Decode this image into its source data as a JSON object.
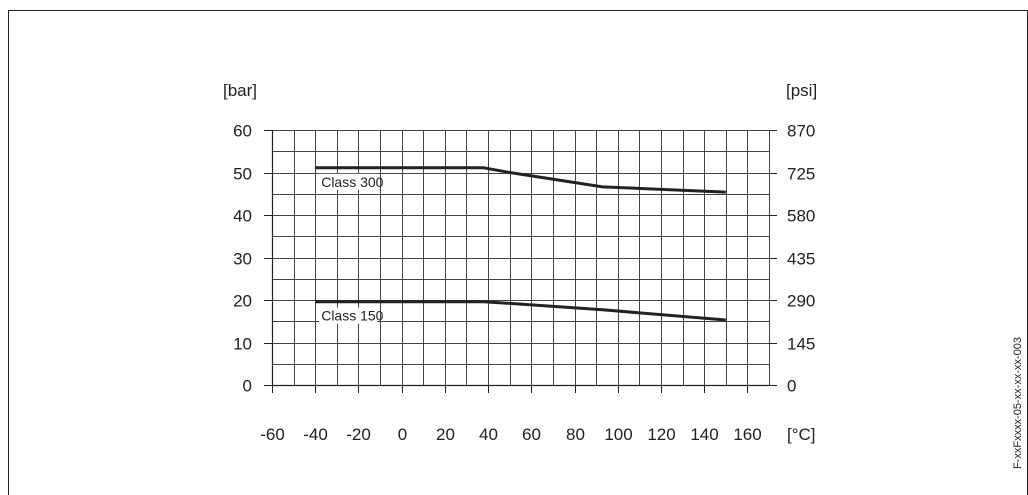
{
  "figure_id": "F-xxFxxxx-05-xx-xx-xx-003",
  "chart_data": {
    "type": "line",
    "left_axis_unit": "[bar]",
    "right_axis_unit": "[psi]",
    "x_axis_unit": "[°C]",
    "x_ticks": [
      -60,
      -40,
      -20,
      0,
      20,
      40,
      60,
      80,
      100,
      120,
      140,
      160
    ],
    "x_tick_labels": [
      "-60",
      "-40",
      "-20",
      "0",
      "20",
      "40",
      "60",
      "80",
      "100",
      "120",
      "140",
      "160"
    ],
    "xlim": [
      -60,
      170
    ],
    "y_ticks": [
      0,
      10,
      20,
      30,
      40,
      50,
      60
    ],
    "y_tick_labels": [
      "0",
      "10",
      "20",
      "30",
      "40",
      "50",
      "60"
    ],
    "ylim": [
      0,
      60
    ],
    "y_right_ticks": [
      0,
      145,
      290,
      435,
      580,
      725,
      870
    ],
    "y_right_tick_labels": [
      "0",
      "145",
      "290",
      "435",
      "580",
      "725",
      "870"
    ],
    "grid": true,
    "series": [
      {
        "name": "Class 300",
        "x": [
          -40,
          38,
          50,
          93,
          150
        ],
        "y": [
          51.1,
          51.1,
          50.0,
          46.6,
          45.4
        ]
      },
      {
        "name": "Class 150",
        "x": [
          -40,
          38,
          50,
          93,
          150
        ],
        "y": [
          19.6,
          19.6,
          19.2,
          17.7,
          15.3
        ]
      }
    ]
  }
}
